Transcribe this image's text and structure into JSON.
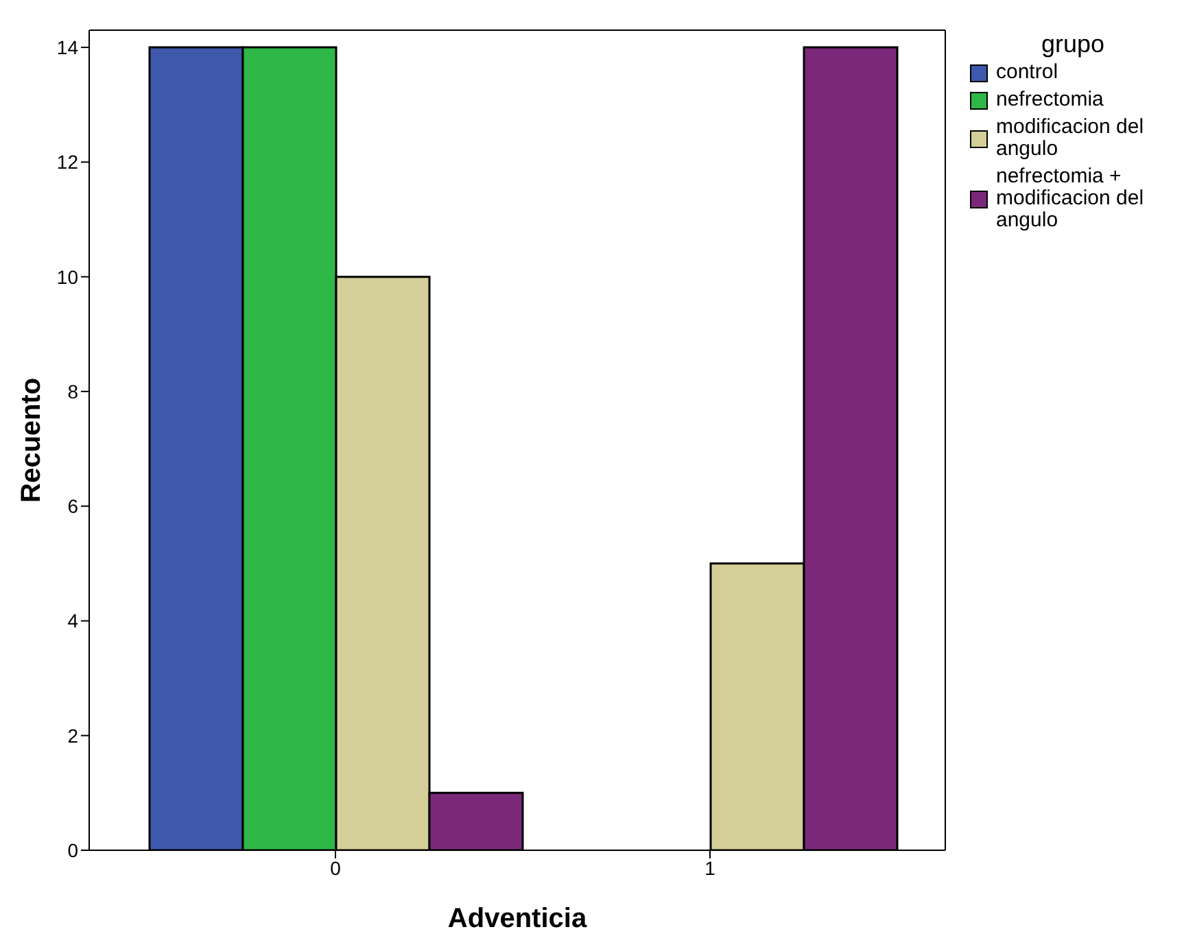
{
  "chart_data": {
    "type": "bar",
    "xlabel": "Adventicia",
    "ylabel": "Recuento",
    "legend_title": "grupo",
    "categories": [
      "0",
      "1"
    ],
    "series": [
      {
        "name": "control",
        "color": "#3e58ac",
        "values": [
          14,
          0
        ]
      },
      {
        "name": "nefrectomia",
        "color": "#2eb848",
        "values": [
          14,
          0
        ]
      },
      {
        "name": "modificacion del angulo",
        "color": "#d4cf98",
        "values": [
          10,
          5
        ]
      },
      {
        "name": "nefrectomia + modificacion del angulo",
        "color": "#7b287a",
        "values": [
          1,
          14
        ]
      }
    ],
    "ylim": [
      0,
      14.3
    ],
    "yticks": [
      0,
      2,
      4,
      6,
      8,
      10,
      12,
      14
    ],
    "grid": false,
    "legend": "right"
  }
}
